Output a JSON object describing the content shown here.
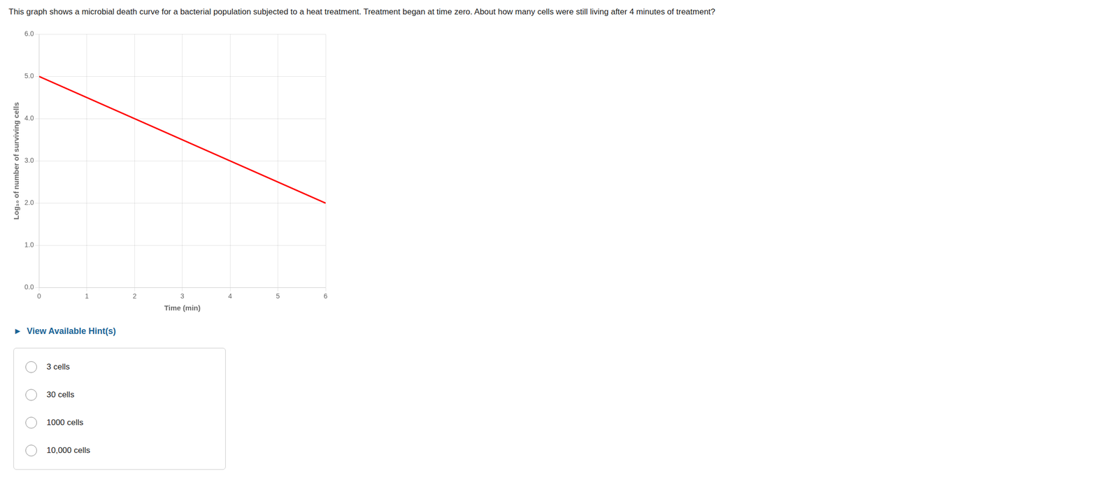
{
  "chart_data": {
    "type": "line",
    "title": "This graph shows a microbial death curve for a bacterial population subjected to a heat treatment. Treatment began at time zero. About how many cells were still living after 4 minutes of treatment?",
    "x_label": "Time (min)",
    "y_label": "Log₁₀ of number of surviving cells",
    "x": [
      0,
      6
    ],
    "values": [
      5.0,
      2.0
    ],
    "color": "#ff0000",
    "xlim": [
      0,
      6
    ],
    "ylim": [
      0.0,
      6.0
    ],
    "xticks": [
      0,
      1,
      2,
      3,
      4,
      5,
      6
    ],
    "yticks": [
      {
        "value": 0,
        "label": "0.0"
      },
      {
        "value": 1,
        "label": "1.0"
      },
      {
        "value": 2,
        "label": "2.0"
      },
      {
        "value": 3,
        "label": "3.0"
      },
      {
        "value": 4,
        "label": "4.0"
      },
      {
        "value": 5,
        "label": "5.0"
      },
      {
        "value": 6,
        "label": "6.0"
      }
    ],
    "grid": true,
    "annotations": [
      "►  View Available Hint(s)",
      "3 cells",
      "30 cells",
      "1000 cells",
      "10,000 cells"
    ]
  }
}
